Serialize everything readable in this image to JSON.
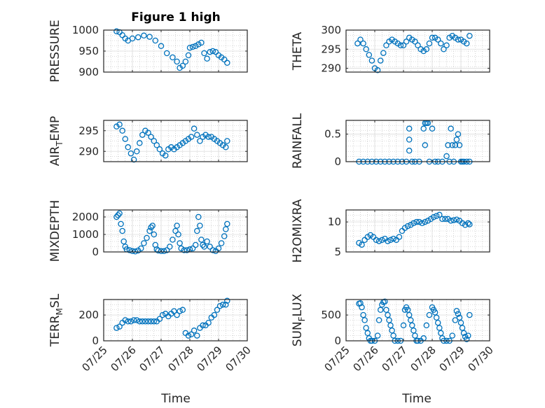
{
  "figure": {
    "title": "Figure 1 high",
    "xlabel": "Time"
  },
  "chart_data": [
    {
      "type": "scatter",
      "title": "Figure 1 high",
      "xlabel": "",
      "ylabel": "PRESSURE",
      "xlim": [
        0,
        5
      ],
      "ylim": [
        900,
        1000
      ],
      "yticks": [
        900,
        950,
        1000
      ],
      "xticks": [
        "07/25",
        "07/26",
        "07/27",
        "07/28",
        "07/29",
        "07/30"
      ],
      "show_xticks": false,
      "x": [
        0.45,
        0.55,
        0.65,
        0.75,
        0.85,
        1.0,
        1.2,
        1.4,
        1.6,
        1.8,
        2.0,
        2.2,
        2.4,
        2.55,
        2.65,
        2.75,
        2.85,
        2.95,
        3.0,
        3.1,
        3.2,
        3.3,
        3.4,
        3.5,
        3.6,
        3.7,
        3.8,
        3.9,
        4.0,
        4.1,
        4.2,
        4.3
      ],
      "y": [
        997,
        995,
        988,
        980,
        975,
        980,
        983,
        987,
        984,
        975,
        962,
        945,
        935,
        925,
        910,
        915,
        925,
        940,
        958,
        960,
        962,
        966,
        970,
        945,
        932,
        948,
        950,
        948,
        940,
        935,
        930,
        922
      ]
    },
    {
      "type": "scatter",
      "xlabel": "",
      "ylabel": "THETA",
      "xlim": [
        0,
        5
      ],
      "ylim": [
        289,
        300
      ],
      "yticks": [
        290,
        295,
        300
      ],
      "xticks": [
        "07/25",
        "07/26",
        "07/27",
        "07/28",
        "07/29",
        "07/30"
      ],
      "show_xticks": false,
      "x": [
        0.4,
        0.5,
        0.6,
        0.7,
        0.8,
        0.9,
        1.0,
        1.1,
        1.2,
        1.3,
        1.4,
        1.5,
        1.6,
        1.7,
        1.8,
        1.9,
        2.0,
        2.1,
        2.2,
        2.3,
        2.4,
        2.5,
        2.6,
        2.7,
        2.8,
        2.9,
        3.0,
        3.1,
        3.2,
        3.3,
        3.4,
        3.5,
        3.6,
        3.7,
        3.8,
        3.9,
        4.0,
        4.1,
        4.2,
        4.3
      ],
      "y": [
        296.5,
        297.5,
        296.5,
        295,
        293.5,
        292,
        290,
        289.5,
        292,
        294,
        296,
        297,
        297.5,
        297,
        296.5,
        296,
        296,
        297,
        298,
        297.5,
        297,
        296,
        295,
        294.5,
        295,
        296.5,
        298,
        298,
        297.5,
        296.5,
        295,
        296,
        298,
        298.5,
        298,
        297.5,
        297.5,
        297,
        296.5,
        298.5
      ]
    },
    {
      "type": "scatter",
      "xlabel": "",
      "ylabel": "AIR_TEMP",
      "xlim": [
        0,
        5
      ],
      "ylim": [
        287.5,
        297.5
      ],
      "yticks": [
        290,
        295
      ],
      "xticks": [
        "07/25",
        "07/26",
        "07/27",
        "07/28",
        "07/29",
        "07/30"
      ],
      "show_xticks": false,
      "x": [
        0.45,
        0.55,
        0.65,
        0.75,
        0.85,
        0.95,
        1.05,
        1.15,
        1.25,
        1.35,
        1.45,
        1.55,
        1.65,
        1.75,
        1.85,
        1.95,
        2.05,
        2.15,
        2.25,
        2.35,
        2.45,
        2.55,
        2.65,
        2.75,
        2.85,
        2.95,
        3.05,
        3.15,
        3.25,
        3.35,
        3.45,
        3.55,
        3.65,
        3.75,
        3.85,
        3.95,
        4.05,
        4.15,
        4.25,
        4.3
      ],
      "y": [
        296,
        296.5,
        295,
        293,
        291,
        289.5,
        288,
        290,
        292,
        294,
        295,
        294.5,
        293.5,
        292.5,
        291.5,
        290.5,
        289.5,
        289,
        290.5,
        291,
        290.5,
        291,
        291.5,
        292,
        292.5,
        293,
        293.5,
        295.5,
        294,
        292.5,
        293.5,
        294,
        293.5,
        293.5,
        293,
        292.5,
        292,
        291.5,
        291,
        292.5
      ]
    },
    {
      "type": "scatter",
      "xlabel": "",
      "ylabel": "RAINFALL",
      "xlim": [
        0,
        5
      ],
      "ylim": [
        0,
        0.75
      ],
      "yticks": [
        0,
        0.5
      ],
      "xticks": [
        "07/25",
        "07/26",
        "07/27",
        "07/28",
        "07/29",
        "07/30"
      ],
      "show_xticks": false,
      "x": [
        0.45,
        0.6,
        0.75,
        0.9,
        1.05,
        1.2,
        1.35,
        1.5,
        1.65,
        1.8,
        1.95,
        2.1,
        2.2,
        2.2,
        2.2,
        2.3,
        2.4,
        2.55,
        2.7,
        2.75,
        2.75,
        2.8,
        2.85,
        2.9,
        3.0,
        3.1,
        3.2,
        3.35,
        3.5,
        3.55,
        3.6,
        3.65,
        3.7,
        3.75,
        3.8,
        3.85,
        3.9,
        3.95,
        4.0,
        4.05,
        4.1,
        4.2,
        4.3
      ],
      "y": [
        0,
        0,
        0,
        0,
        0,
        0,
        0,
        0,
        0,
        0,
        0,
        0,
        0.6,
        0.2,
        0.4,
        0,
        0,
        0,
        0.6,
        0.3,
        0.7,
        0.7,
        0.7,
        0,
        0.6,
        0,
        0,
        0,
        0.1,
        0.3,
        0,
        0.6,
        0.3,
        0,
        0.3,
        0.4,
        0.5,
        0.3,
        0,
        0,
        0,
        0,
        0
      ]
    },
    {
      "type": "scatter",
      "xlabel": "",
      "ylabel": "MIXDEPTH",
      "xlim": [
        0,
        5
      ],
      "ylim": [
        0,
        2400
      ],
      "yticks": [
        0,
        1000,
        2000
      ],
      "xticks": [
        "07/25",
        "07/26",
        "07/27",
        "07/28",
        "07/29",
        "07/30"
      ],
      "show_xticks": false,
      "x": [
        0.45,
        0.5,
        0.55,
        0.6,
        0.65,
        0.7,
        0.75,
        0.8,
        0.9,
        1.0,
        1.1,
        1.2,
        1.3,
        1.4,
        1.5,
        1.6,
        1.65,
        1.7,
        1.75,
        1.8,
        1.85,
        1.9,
        2.0,
        2.1,
        2.2,
        2.3,
        2.4,
        2.5,
        2.55,
        2.6,
        2.65,
        2.7,
        2.8,
        2.9,
        3.0,
        3.1,
        3.2,
        3.25,
        3.3,
        3.35,
        3.4,
        3.45,
        3.5,
        3.6,
        3.7,
        3.8,
        3.9,
        4.0,
        4.1,
        4.2,
        4.25,
        4.3
      ],
      "y": [
        2000,
        2100,
        2200,
        1600,
        1200,
        600,
        300,
        150,
        100,
        50,
        30,
        80,
        200,
        500,
        800,
        1200,
        1400,
        1500,
        1000,
        400,
        150,
        80,
        50,
        50,
        100,
        300,
        700,
        1200,
        1500,
        1000,
        500,
        200,
        100,
        100,
        150,
        200,
        400,
        1200,
        2000,
        1500,
        700,
        400,
        300,
        600,
        300,
        100,
        50,
        200,
        500,
        900,
        1300,
        1600
      ]
    },
    {
      "type": "scatter",
      "xlabel": "",
      "ylabel": "H2OMIXRA",
      "xlim": [
        0,
        5
      ],
      "ylim": [
        5,
        12
      ],
      "yticks": [
        5,
        10
      ],
      "xticks": [
        "07/25",
        "07/26",
        "07/27",
        "07/28",
        "07/29",
        "07/30"
      ],
      "show_xticks": false,
      "x": [
        0.45,
        0.55,
        0.65,
        0.75,
        0.85,
        0.95,
        1.05,
        1.15,
        1.25,
        1.35,
        1.45,
        1.55,
        1.65,
        1.75,
        1.85,
        1.95,
        2.05,
        2.15,
        2.25,
        2.35,
        2.45,
        2.55,
        2.65,
        2.75,
        2.85,
        2.95,
        3.05,
        3.15,
        3.25,
        3.35,
        3.45,
        3.55,
        3.65,
        3.75,
        3.85,
        3.95,
        4.05,
        4.15,
        4.25,
        4.3
      ],
      "y": [
        6.5,
        6.2,
        7,
        7.5,
        7.8,
        7.5,
        7,
        6.8,
        7,
        7.2,
        6.8,
        7,
        7.2,
        7,
        7.5,
        8.5,
        9,
        9.3,
        9.5,
        9.8,
        10,
        10,
        9.8,
        10,
        10.2,
        10.5,
        10.8,
        11,
        11.2,
        10.5,
        10.5,
        10.5,
        10.2,
        10.3,
        10.4,
        10.2,
        9.8,
        9.5,
        9.8,
        9.6
      ]
    },
    {
      "type": "scatter",
      "xlabel": "Time",
      "ylabel": "TERR_MSL",
      "xlim": [
        0,
        5
      ],
      "ylim": [
        0,
        320
      ],
      "yticks": [
        0,
        200
      ],
      "xticks": [
        "07/25",
        "07/26",
        "07/27",
        "07/28",
        "07/29",
        "07/30"
      ],
      "show_xticks": true,
      "x": [
        0.45,
        0.55,
        0.65,
        0.75,
        0.85,
        0.95,
        1.05,
        1.15,
        1.25,
        1.35,
        1.45,
        1.55,
        1.65,
        1.75,
        1.85,
        1.95,
        2.05,
        2.15,
        2.25,
        2.35,
        2.45,
        2.55,
        2.65,
        2.75,
        2.85,
        2.95,
        3.05,
        3.15,
        3.25,
        3.35,
        3.45,
        3.55,
        3.65,
        3.75,
        3.85,
        3.95,
        4.05,
        4.15,
        4.25,
        4.3
      ],
      "y": [
        100,
        110,
        140,
        160,
        150,
        150,
        160,
        160,
        150,
        150,
        150,
        150,
        150,
        150,
        150,
        170,
        200,
        210,
        190,
        210,
        230,
        200,
        230,
        240,
        60,
        40,
        50,
        80,
        40,
        100,
        120,
        120,
        140,
        180,
        200,
        240,
        270,
        280,
        280,
        310
      ]
    },
    {
      "type": "scatter",
      "xlabel": "Time",
      "ylabel": "SUN_FLUX",
      "xlim": [
        0,
        5
      ],
      "ylim": [
        0,
        800
      ],
      "yticks": [
        0,
        500
      ],
      "xticks": [
        "07/25",
        "07/26",
        "07/27",
        "07/28",
        "07/29",
        "07/30"
      ],
      "show_xticks": true,
      "x": [
        0.45,
        0.5,
        0.55,
        0.6,
        0.65,
        0.7,
        0.75,
        0.8,
        0.85,
        0.9,
        1.0,
        1.1,
        1.15,
        1.2,
        1.25,
        1.3,
        1.35,
        1.4,
        1.45,
        1.5,
        1.55,
        1.6,
        1.65,
        1.7,
        1.8,
        1.9,
        2.0,
        2.05,
        2.1,
        2.15,
        2.2,
        2.25,
        2.3,
        2.35,
        2.4,
        2.45,
        2.5,
        2.6,
        2.7,
        2.8,
        2.9,
        3.0,
        3.05,
        3.1,
        3.15,
        3.2,
        3.25,
        3.3,
        3.35,
        3.4,
        3.5,
        3.6,
        3.7,
        3.8,
        3.85,
        3.9,
        3.95,
        4.0,
        4.05,
        4.1,
        4.15,
        4.2,
        4.25,
        4.3
      ],
      "y": [
        720,
        730,
        650,
        500,
        400,
        250,
        150,
        50,
        0,
        0,
        0,
        100,
        400,
        600,
        700,
        750,
        760,
        600,
        500,
        400,
        300,
        200,
        100,
        0,
        0,
        0,
        300,
        600,
        650,
        600,
        500,
        400,
        300,
        200,
        100,
        0,
        0,
        0,
        50,
        300,
        500,
        650,
        600,
        550,
        450,
        350,
        250,
        150,
        50,
        0,
        0,
        0,
        100,
        400,
        580,
        520,
        450,
        350,
        250,
        150,
        80,
        30,
        100,
        500
      ]
    }
  ]
}
